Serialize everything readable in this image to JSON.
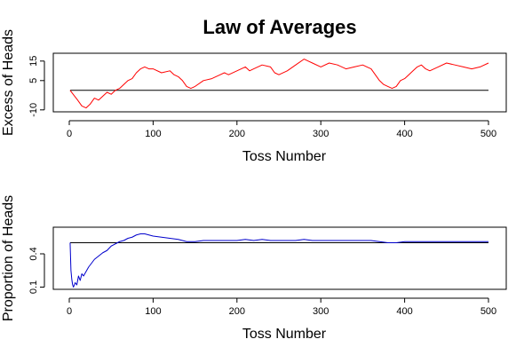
{
  "title": "Law of Averages",
  "chart_data": [
    {
      "type": "line",
      "ylabel": "Excess of Heads",
      "xlabel": "Toss Number",
      "xlim": [
        0,
        500
      ],
      "ylim": [
        -11,
        19
      ],
      "xticks": [
        0,
        100,
        200,
        300,
        400,
        500
      ],
      "yticks": [
        -10,
        5,
        15
      ],
      "reference_line": 0,
      "series": [
        {
          "color": "#ff0000",
          "points": [
            [
              1,
              0
            ],
            [
              10,
              -5
            ],
            [
              15,
              -8
            ],
            [
              20,
              -9
            ],
            [
              25,
              -7
            ],
            [
              30,
              -4
            ],
            [
              35,
              -5
            ],
            [
              40,
              -3
            ],
            [
              45,
              -1
            ],
            [
              50,
              -2
            ],
            [
              55,
              0
            ],
            [
              60,
              1
            ],
            [
              65,
              3
            ],
            [
              70,
              5
            ],
            [
              75,
              6
            ],
            [
              80,
              9
            ],
            [
              85,
              11
            ],
            [
              90,
              12
            ],
            [
              95,
              11
            ],
            [
              100,
              11
            ],
            [
              110,
              9
            ],
            [
              120,
              10
            ],
            [
              125,
              8
            ],
            [
              130,
              7
            ],
            [
              135,
              5
            ],
            [
              140,
              2
            ],
            [
              145,
              1
            ],
            [
              150,
              2
            ],
            [
              160,
              5
            ],
            [
              170,
              6
            ],
            [
              180,
              8
            ],
            [
              185,
              9
            ],
            [
              190,
              8
            ],
            [
              200,
              10
            ],
            [
              210,
              12
            ],
            [
              215,
              10
            ],
            [
              220,
              11
            ],
            [
              230,
              13
            ],
            [
              240,
              12
            ],
            [
              245,
              9
            ],
            [
              250,
              8
            ],
            [
              260,
              10
            ],
            [
              270,
              13
            ],
            [
              280,
              16
            ],
            [
              285,
              15
            ],
            [
              290,
              14
            ],
            [
              300,
              12
            ],
            [
              310,
              14
            ],
            [
              320,
              13
            ],
            [
              330,
              11
            ],
            [
              340,
              12
            ],
            [
              350,
              13
            ],
            [
              355,
              12
            ],
            [
              360,
              11
            ],
            [
              365,
              8
            ],
            [
              370,
              5
            ],
            [
              375,
              3
            ],
            [
              380,
              2
            ],
            [
              385,
              1
            ],
            [
              390,
              2
            ],
            [
              395,
              5
            ],
            [
              400,
              6
            ],
            [
              405,
              8
            ],
            [
              410,
              10
            ],
            [
              415,
              12
            ],
            [
              420,
              13
            ],
            [
              425,
              11
            ],
            [
              430,
              10
            ],
            [
              440,
              12
            ],
            [
              450,
              14
            ],
            [
              460,
              13
            ],
            [
              470,
              12
            ],
            [
              480,
              11
            ],
            [
              490,
              12
            ],
            [
              500,
              14
            ]
          ]
        }
      ]
    },
    {
      "type": "line",
      "ylabel": "Proportion of Heads",
      "xlabel": "Toss Number",
      "xlim": [
        0,
        500
      ],
      "ylim": [
        0.08,
        0.64
      ],
      "xticks": [
        0,
        100,
        200,
        300,
        400,
        500
      ],
      "yticks": [
        0.1,
        0.4
      ],
      "reference_line": 0.5,
      "series": [
        {
          "color": "#0000cc",
          "points": [
            [
              1,
              0.5
            ],
            [
              2,
              0.25
            ],
            [
              3,
              0.17
            ],
            [
              4,
              0.12
            ],
            [
              5,
              0.1
            ],
            [
              7,
              0.14
            ],
            [
              9,
              0.12
            ],
            [
              11,
              0.2
            ],
            [
              13,
              0.16
            ],
            [
              15,
              0.22
            ],
            [
              17,
              0.2
            ],
            [
              20,
              0.24
            ],
            [
              23,
              0.28
            ],
            [
              26,
              0.31
            ],
            [
              30,
              0.35
            ],
            [
              35,
              0.38
            ],
            [
              40,
              0.41
            ],
            [
              45,
              0.43
            ],
            [
              50,
              0.47
            ],
            [
              55,
              0.49
            ],
            [
              60,
              0.51
            ],
            [
              65,
              0.52
            ],
            [
              70,
              0.54
            ],
            [
              75,
              0.55
            ],
            [
              80,
              0.57
            ],
            [
              85,
              0.58
            ],
            [
              90,
              0.58
            ],
            [
              95,
              0.57
            ],
            [
              100,
              0.56
            ],
            [
              110,
              0.55
            ],
            [
              120,
              0.54
            ],
            [
              130,
              0.53
            ],
            [
              140,
              0.51
            ],
            [
              150,
              0.51
            ],
            [
              160,
              0.52
            ],
            [
              170,
              0.52
            ],
            [
              180,
              0.52
            ],
            [
              190,
              0.52
            ],
            [
              200,
              0.52
            ],
            [
              210,
              0.53
            ],
            [
              220,
              0.52
            ],
            [
              230,
              0.53
            ],
            [
              240,
              0.52
            ],
            [
              250,
              0.52
            ],
            [
              260,
              0.52
            ],
            [
              270,
              0.52
            ],
            [
              280,
              0.53
            ],
            [
              290,
              0.52
            ],
            [
              300,
              0.52
            ],
            [
              320,
              0.52
            ],
            [
              340,
              0.52
            ],
            [
              360,
              0.52
            ],
            [
              370,
              0.51
            ],
            [
              380,
              0.5
            ],
            [
              390,
              0.5
            ],
            [
              400,
              0.51
            ],
            [
              420,
              0.51
            ],
            [
              440,
              0.51
            ],
            [
              460,
              0.51
            ],
            [
              480,
              0.51
            ],
            [
              500,
              0.51
            ]
          ]
        }
      ]
    }
  ]
}
